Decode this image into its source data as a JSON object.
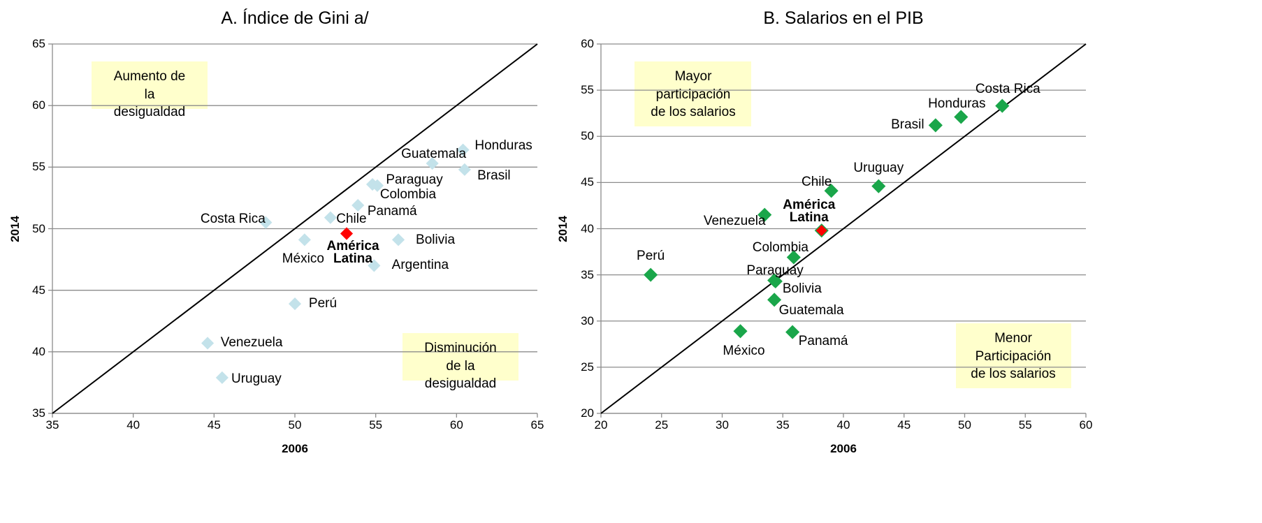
{
  "chart_data": [
    {
      "type": "scatter",
      "title": "A. Índice de Gini a/",
      "xlabel": "2006",
      "ylabel": "2014",
      "labels": [
        "Costa Rica",
        "México",
        "Chile",
        "América\nLatina",
        "Perú",
        "Venezuela",
        "Uruguay",
        "Panamá",
        "Paraguay",
        "Colombia",
        "Bolivia",
        "Argentina",
        "Guatemala",
        "Honduras",
        "Brasil"
      ],
      "x": [
        48.2,
        50.6,
        52.2,
        53.2,
        50.0,
        44.6,
        45.5,
        53.9,
        54.8,
        55.1,
        56.4,
        54.9,
        58.5,
        60.4,
        60.5
      ],
      "values": [
        50.5,
        49.1,
        50.9,
        49.6,
        43.9,
        40.7,
        37.9,
        51.9,
        53.6,
        53.5,
        49.1,
        47.0,
        55.3,
        56.4,
        54.8
      ],
      "colors": [
        "#c3e2ea",
        "#c3e2ea",
        "#c3e2ea",
        "#ff0000",
        "#c3e2ea",
        "#c3e2ea",
        "#c3e2ea",
        "#c3e2ea",
        "#c3e2ea",
        "#c3e2ea",
        "#c3e2ea",
        "#c3e2ea",
        "#c3e2ea",
        "#c3e2ea",
        "#c3e2ea"
      ],
      "highlight": 3,
      "xlim": [
        35,
        65
      ],
      "xticks": [
        35,
        40,
        45,
        50,
        55,
        60,
        65
      ],
      "ylim": [
        35,
        65
      ],
      "yticks": [
        35,
        40,
        45,
        50,
        55,
        60,
        65
      ],
      "grid": true,
      "diagonal": true,
      "annotations": [
        "Aumento de\nla\ndesigualdad",
        "Disminución\nde la\ndesigualdad"
      ],
      "annotation_color": "#ffffcc"
    },
    {
      "type": "scatter",
      "title": "B. Salarios en el PIB",
      "xlabel": "2006",
      "ylabel": "2014",
      "labels": [
        "Costa Rica",
        "Honduras",
        "Brasil",
        "Uruguay",
        "Chile",
        "Venezuela",
        "América\nLatina",
        "Colombia",
        "Perú",
        "Paraguay",
        "Bolivia",
        "Guatemala",
        "México",
        "Panamá"
      ],
      "x": [
        53.1,
        49.7,
        47.6,
        42.9,
        39.0,
        33.5,
        38.2,
        35.9,
        24.1,
        34.3,
        34.4,
        34.3,
        31.5,
        35.8
      ],
      "values": [
        53.3,
        52.1,
        51.2,
        44.6,
        44.1,
        41.5,
        39.8,
        36.9,
        35.0,
        34.4,
        34.3,
        32.3,
        28.9,
        28.8
      ],
      "colors": [
        "#1aa64a",
        "#1aa64a",
        "#1aa64a",
        "#1aa64a",
        "#1aa64a",
        "#1aa64a",
        "#ff0000",
        "#1aa64a",
        "#1aa64a",
        "#1aa64a",
        "#1aa64a",
        "#1aa64a",
        "#1aa64a",
        "#1aa64a"
      ],
      "highlight": 6,
      "xlim": [
        20,
        60
      ],
      "xticks": [
        20,
        25,
        30,
        35,
        40,
        45,
        50,
        55,
        60
      ],
      "ylim": [
        20,
        60
      ],
      "yticks": [
        20,
        25,
        30,
        35,
        40,
        45,
        50,
        55,
        60
      ],
      "grid": true,
      "diagonal": true,
      "annotations": [
        "Mayor\nparticipación\nde los salarios",
        "Menor\nParticipación\nde los salarios"
      ],
      "annotation_color": "#ffffcc"
    }
  ]
}
